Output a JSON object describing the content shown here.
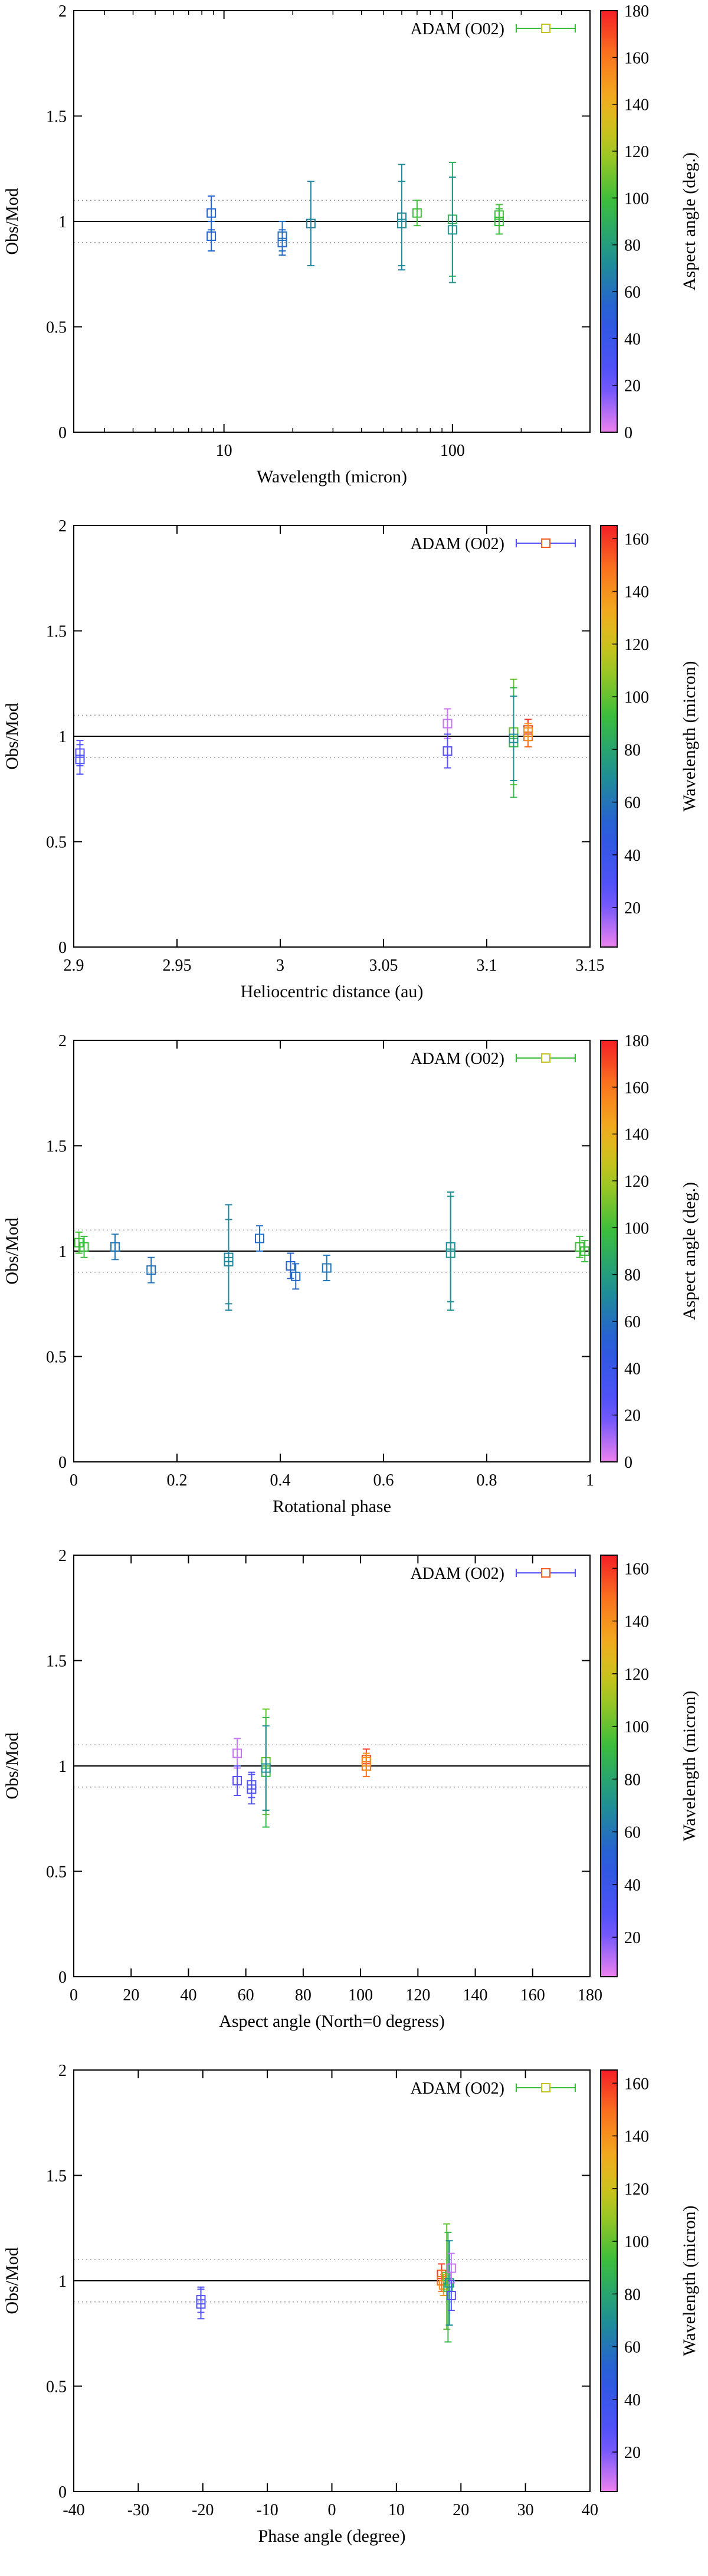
{
  "chart_data": [
    {
      "type": "scatter",
      "xlabel": "Wavelength (micron)",
      "ylabel": "Obs/Mod",
      "colorbar_label": "Aspect angle (deg.)",
      "legend": "ADAM (O02)",
      "x_scale": "log",
      "xlim": [
        2.2,
        400
      ],
      "ylim": [
        0,
        2
      ],
      "x_ticks": [
        {
          "v": 10,
          "label": "10"
        },
        {
          "v": 100,
          "label": "100"
        }
      ],
      "y_ticks": [
        0,
        0.5,
        1,
        1.5,
        2
      ],
      "y_tick_labels": [
        "0",
        "0.5",
        "1",
        "1.5",
        "2"
      ],
      "cb_range": [
        0,
        180
      ],
      "cb_ticks": [
        0,
        20,
        40,
        60,
        80,
        100,
        120,
        140,
        160,
        180
      ],
      "reference_lines": {
        "solid": 1.0,
        "dotted": [
          0.9,
          1.1
        ]
      },
      "points": [
        {
          "x": 8.8,
          "y": 1.04,
          "err": 0.08,
          "c": 55
        },
        {
          "x": 8.8,
          "y": 0.93,
          "err": 0.07,
          "c": 55
        },
        {
          "x": 18.0,
          "y": 0.93,
          "err": 0.07,
          "c": 60
        },
        {
          "x": 18.0,
          "y": 0.9,
          "err": 0.06,
          "c": 58
        },
        {
          "x": 24.0,
          "y": 0.99,
          "err": 0.2,
          "c": 68
        },
        {
          "x": 60.0,
          "y": 1.02,
          "err": 0.25,
          "c": 70
        },
        {
          "x": 60.0,
          "y": 0.99,
          "err": 0.2,
          "c": 72
        },
        {
          "x": 70.0,
          "y": 1.04,
          "err": 0.06,
          "c": 100
        },
        {
          "x": 100.0,
          "y": 1.01,
          "err": 0.27,
          "c": 90
        },
        {
          "x": 100.0,
          "y": 0.96,
          "err": 0.25,
          "c": 75
        },
        {
          "x": 160.0,
          "y": 1.03,
          "err": 0.05,
          "c": 100
        },
        {
          "x": 160.0,
          "y": 1.0,
          "err": 0.06,
          "c": 98
        }
      ]
    },
    {
      "type": "scatter",
      "xlabel": "Heliocentric distance (au)",
      "ylabel": "Obs/Mod",
      "colorbar_label": "Wavelength (micron)",
      "legend": "ADAM (O02)",
      "x_scale": "linear",
      "xlim": [
        2.9,
        3.15
      ],
      "ylim": [
        0,
        2
      ],
      "x_ticks": [
        {
          "v": 2.9,
          "label": "2.9"
        },
        {
          "v": 2.95,
          "label": "2.95"
        },
        {
          "v": 3.0,
          "label": "3"
        },
        {
          "v": 3.05,
          "label": "3.05"
        },
        {
          "v": 3.1,
          "label": "3.1"
        },
        {
          "v": 3.15,
          "label": "3.15"
        }
      ],
      "y_ticks": [
        0,
        0.5,
        1,
        1.5,
        2
      ],
      "y_tick_labels": [
        "0",
        "0.5",
        "1",
        "1.5",
        "2"
      ],
      "cb_range": [
        5,
        165
      ],
      "cb_ticks": [
        20,
        40,
        60,
        80,
        100,
        120,
        140,
        160
      ],
      "reference_lines": {
        "solid": 1.0,
        "dotted": [
          0.9,
          1.1
        ]
      },
      "points": [
        {
          "x": 2.903,
          "y": 0.92,
          "err": 0.06,
          "c": 25
        },
        {
          "x": 2.903,
          "y": 0.89,
          "err": 0.07,
          "c": 30
        },
        {
          "x": 3.081,
          "y": 1.06,
          "err": 0.07,
          "c": 10
        },
        {
          "x": 3.081,
          "y": 0.93,
          "err": 0.08,
          "c": 25
        },
        {
          "x": 3.113,
          "y": 1.02,
          "err": 0.25,
          "c": 100
        },
        {
          "x": 3.113,
          "y": 0.97,
          "err": 0.26,
          "c": 90
        },
        {
          "x": 3.113,
          "y": 0.99,
          "err": 0.2,
          "c": 70
        },
        {
          "x": 3.12,
          "y": 1.03,
          "err": 0.05,
          "c": 160
        },
        {
          "x": 3.12,
          "y": 1.0,
          "err": 0.05,
          "c": 150
        },
        {
          "x": 3.12,
          "y": 1.02,
          "err": 0.04,
          "c": 140
        }
      ]
    },
    {
      "type": "scatter",
      "xlabel": "Rotational phase",
      "ylabel": "Obs/Mod",
      "colorbar_label": "Aspect angle (deg.)",
      "legend": "ADAM (O02)",
      "x_scale": "linear",
      "xlim": [
        0,
        1
      ],
      "ylim": [
        0,
        2
      ],
      "x_ticks": [
        {
          "v": 0,
          "label": "0"
        },
        {
          "v": 0.2,
          "label": "0.2"
        },
        {
          "v": 0.4,
          "label": "0.4"
        },
        {
          "v": 0.6,
          "label": "0.6"
        },
        {
          "v": 0.8,
          "label": "0.8"
        },
        {
          "v": 1,
          "label": "1"
        }
      ],
      "y_ticks": [
        0,
        0.5,
        1,
        1.5,
        2
      ],
      "y_tick_labels": [
        "0",
        "0.5",
        "1",
        "1.5",
        "2"
      ],
      "cb_range": [
        0,
        180
      ],
      "cb_ticks": [
        0,
        20,
        40,
        60,
        80,
        100,
        120,
        140,
        160,
        180
      ],
      "reference_lines": {
        "solid": 1.0,
        "dotted": [
          0.9,
          1.1
        ]
      },
      "points": [
        {
          "x": 0.01,
          "y": 1.04,
          "err": 0.05,
          "c": 100
        },
        {
          "x": 0.02,
          "y": 1.02,
          "err": 0.05,
          "c": 98
        },
        {
          "x": 0.08,
          "y": 1.02,
          "err": 0.06,
          "c": 62
        },
        {
          "x": 0.15,
          "y": 0.91,
          "err": 0.06,
          "c": 60
        },
        {
          "x": 0.3,
          "y": 0.97,
          "err": 0.25,
          "c": 68
        },
        {
          "x": 0.3,
          "y": 0.95,
          "err": 0.2,
          "c": 70
        },
        {
          "x": 0.36,
          "y": 1.06,
          "err": 0.06,
          "c": 58
        },
        {
          "x": 0.42,
          "y": 0.93,
          "err": 0.06,
          "c": 55
        },
        {
          "x": 0.43,
          "y": 0.88,
          "err": 0.06,
          "c": 57
        },
        {
          "x": 0.49,
          "y": 0.92,
          "err": 0.06,
          "c": 62
        },
        {
          "x": 0.73,
          "y": 1.02,
          "err": 0.26,
          "c": 72
        },
        {
          "x": 0.73,
          "y": 0.99,
          "err": 0.27,
          "c": 75
        },
        {
          "x": 0.98,
          "y": 1.02,
          "err": 0.05,
          "c": 100
        },
        {
          "x": 0.99,
          "y": 1.0,
          "err": 0.05,
          "c": 98
        }
      ]
    },
    {
      "type": "scatter",
      "xlabel": "Aspect angle (North=0 degress)",
      "ylabel": "Obs/Mod",
      "colorbar_label": "Wavelength (micron)",
      "legend": "ADAM (O02)",
      "x_scale": "linear",
      "xlim": [
        0,
        180
      ],
      "ylim": [
        0,
        2
      ],
      "x_ticks": [
        {
          "v": 0,
          "label": "0"
        },
        {
          "v": 20,
          "label": "20"
        },
        {
          "v": 40,
          "label": "40"
        },
        {
          "v": 60,
          "label": "60"
        },
        {
          "v": 80,
          "label": "80"
        },
        {
          "v": 100,
          "label": "100"
        },
        {
          "v": 120,
          "label": "120"
        },
        {
          "v": 140,
          "label": "140"
        },
        {
          "v": 160,
          "label": "160"
        },
        {
          "v": 180,
          "label": "180"
        }
      ],
      "y_ticks": [
        0,
        0.5,
        1,
        1.5,
        2
      ],
      "y_tick_labels": [
        "0",
        "0.5",
        "1",
        "1.5",
        "2"
      ],
      "cb_range": [
        5,
        165
      ],
      "cb_ticks": [
        20,
        40,
        60,
        80,
        100,
        120,
        140,
        160
      ],
      "reference_lines": {
        "solid": 1.0,
        "dotted": [
          0.9,
          1.1
        ]
      },
      "points": [
        {
          "x": 57,
          "y": 1.06,
          "err": 0.07,
          "c": 10
        },
        {
          "x": 57,
          "y": 0.93,
          "err": 0.07,
          "c": 25
        },
        {
          "x": 62,
          "y": 0.91,
          "err": 0.06,
          "c": 28
        },
        {
          "x": 62,
          "y": 0.89,
          "err": 0.07,
          "c": 30
        },
        {
          "x": 67,
          "y": 1.02,
          "err": 0.25,
          "c": 100
        },
        {
          "x": 67,
          "y": 0.97,
          "err": 0.26,
          "c": 90
        },
        {
          "x": 67,
          "y": 0.99,
          "err": 0.2,
          "c": 70
        },
        {
          "x": 102,
          "y": 1.03,
          "err": 0.05,
          "c": 160
        },
        {
          "x": 102,
          "y": 1.0,
          "err": 0.05,
          "c": 150
        },
        {
          "x": 102,
          "y": 1.02,
          "err": 0.04,
          "c": 140
        }
      ]
    },
    {
      "type": "scatter",
      "xlabel": "Phase angle (degree)",
      "ylabel": "Obs/Mod",
      "colorbar_label": "Wavelength (micron)",
      "legend": "ADAM (O02)",
      "x_scale": "linear",
      "xlim": [
        -40,
        40
      ],
      "ylim": [
        0,
        2
      ],
      "x_ticks": [
        {
          "v": -40,
          "label": "-40"
        },
        {
          "v": -30,
          "label": "-30"
        },
        {
          "v": -20,
          "label": "-20"
        },
        {
          "v": -10,
          "label": "-10"
        },
        {
          "v": 0,
          "label": "0"
        },
        {
          "v": 10,
          "label": "10"
        },
        {
          "v": 20,
          "label": "20"
        },
        {
          "v": 30,
          "label": "30"
        },
        {
          "v": 40,
          "label": "40"
        }
      ],
      "y_ticks": [
        0,
        0.5,
        1,
        1.5,
        2
      ],
      "y_tick_labels": [
        "0",
        "0.5",
        "1",
        "1.5",
        "2"
      ],
      "cb_range": [
        5,
        165
      ],
      "cb_ticks": [
        20,
        40,
        60,
        80,
        100,
        120,
        140,
        160
      ],
      "reference_lines": {
        "solid": 1.0,
        "dotted": [
          0.9,
          1.1
        ]
      },
      "points": [
        {
          "x": -20.3,
          "y": 0.91,
          "err": 0.06,
          "c": 28
        },
        {
          "x": -20.3,
          "y": 0.89,
          "err": 0.07,
          "c": 30
        },
        {
          "x": 17.0,
          "y": 1.03,
          "err": 0.05,
          "c": 160
        },
        {
          "x": 17.0,
          "y": 1.0,
          "err": 0.05,
          "c": 150
        },
        {
          "x": 17.3,
          "y": 0.98,
          "err": 0.05,
          "c": 140
        },
        {
          "x": 17.8,
          "y": 1.02,
          "err": 0.25,
          "c": 100
        },
        {
          "x": 18.0,
          "y": 0.97,
          "err": 0.26,
          "c": 90
        },
        {
          "x": 18.2,
          "y": 0.99,
          "err": 0.2,
          "c": 70
        },
        {
          "x": 18.5,
          "y": 1.06,
          "err": 0.07,
          "c": 10
        },
        {
          "x": 18.5,
          "y": 0.93,
          "err": 0.07,
          "c": 25
        }
      ]
    }
  ]
}
